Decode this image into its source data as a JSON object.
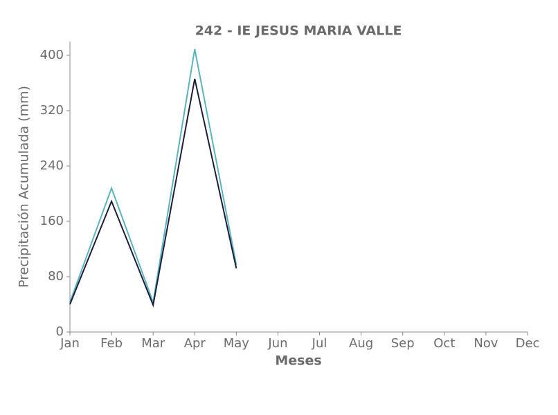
{
  "chart_data": {
    "type": "line",
    "title": "242 - IE JESUS MARIA VALLE",
    "xlabel": "Meses",
    "ylabel": "Precipitación Acumulada (mm)",
    "categories": [
      "Jan",
      "Feb",
      "Mar",
      "Apr",
      "May",
      "Jun",
      "Jul",
      "Aug",
      "Sep",
      "Oct",
      "Nov",
      "Dec"
    ],
    "series": [
      {
        "color": "#5ab4bd",
        "values": [
          43,
          208,
          43,
          409,
          97,
          null,
          null,
          null,
          null,
          null,
          null,
          null
        ]
      },
      {
        "color": "#1c1c3a",
        "values": [
          40,
          189,
          39,
          366,
          92,
          null,
          null,
          null,
          null,
          null,
          null,
          null
        ]
      }
    ],
    "ylim": [
      0,
      420
    ],
    "yticks": [
      0,
      80,
      160,
      240,
      320,
      400
    ],
    "grid": false
  }
}
